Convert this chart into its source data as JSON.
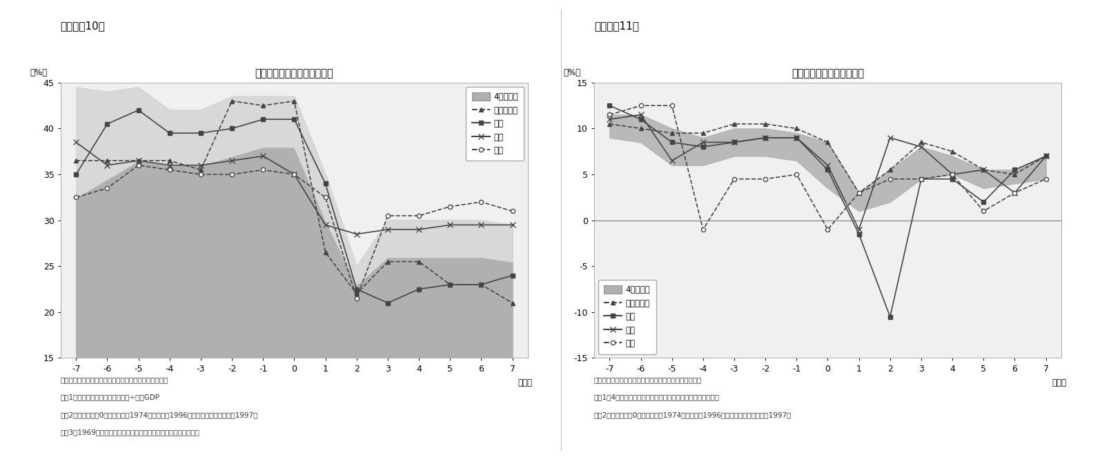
{
  "fig10": {
    "title": "アジア各国の投資比率の屈折",
    "ylabel": "（%）",
    "xlabel": "（年）",
    "xlim": [
      -7.5,
      7.5
    ],
    "ylim": [
      15,
      45
    ],
    "yticks": [
      15,
      20,
      25,
      30,
      35,
      40,
      45
    ],
    "xticks": [
      -7,
      -6,
      -5,
      -4,
      -3,
      -2,
      -1,
      0,
      1,
      2,
      3,
      4,
      5,
      6,
      7
    ],
    "x": [
      -7,
      -6,
      -5,
      -4,
      -3,
      -2,
      -1,
      0,
      1,
      2,
      3,
      4,
      5,
      6,
      7
    ],
    "malaysia": [
      36.5,
      36.5,
      36.5,
      36.5,
      35.5,
      43.0,
      42.5,
      43.0,
      26.5,
      22.0,
      25.5,
      25.5,
      23.0,
      23.0,
      21.0
    ],
    "thailand": [
      35.0,
      40.5,
      42.0,
      39.5,
      39.5,
      40.0,
      41.0,
      41.0,
      34.0,
      22.5,
      21.0,
      22.5,
      23.0,
      23.0,
      24.0
    ],
    "korea": [
      38.5,
      36.0,
      36.5,
      36.0,
      36.0,
      36.5,
      37.0,
      35.0,
      29.5,
      28.5,
      29.0,
      29.0,
      29.5,
      29.5,
      29.5
    ],
    "japan": [
      32.5,
      33.5,
      36.0,
      35.5,
      35.0,
      35.0,
      35.5,
      35.0,
      32.5,
      21.5,
      30.5,
      30.5,
      31.5,
      32.0,
      31.0
    ],
    "avg_lower": [
      32.5,
      34.5,
      36.5,
      36.0,
      36.0,
      37.0,
      38.0,
      38.0,
      30.0,
      23.0,
      26.0,
      26.0,
      26.0,
      26.0,
      25.5
    ],
    "avg_upper": [
      44.5,
      44.0,
      44.5,
      42.0,
      42.0,
      43.5,
      43.5,
      43.5,
      35.0,
      25.0,
      30.0,
      30.0,
      30.0,
      30.0,
      29.5
    ],
    "fill_bottom": 15,
    "notes": [
      "（資料）国連のデータを元にニッセイ基礎研究所で作成",
      "（注1）投資比率は総固定資本形成÷名目GDP",
      "（注2）基準年（＝0年）は日本が1974年、タイが1996年、マレーシアと韓国が1997年",
      "（注3）1969年以前の日本の投資比率はニッセイ基礎研究所で推計"
    ],
    "legend": [
      "4ヵ国平均",
      "マレーシア",
      "タイ",
      "韓国",
      "日本"
    ]
  },
  "fig11": {
    "title": "同時期の経済成長率の推移",
    "ylabel": "（%）",
    "xlabel": "（年）",
    "xlim": [
      -7.5,
      7.5
    ],
    "ylim": [
      -15,
      15
    ],
    "yticks": [
      -15,
      -10,
      -5,
      0,
      5,
      10,
      15
    ],
    "xticks": [
      -7,
      -6,
      -5,
      -4,
      -3,
      -2,
      -1,
      0,
      1,
      2,
      3,
      4,
      5,
      6,
      7
    ],
    "x": [
      -7,
      -6,
      -5,
      -4,
      -3,
      -2,
      -1,
      0,
      1,
      2,
      3,
      4,
      5,
      6,
      7
    ],
    "malaysia": [
      10.5,
      10.0,
      9.5,
      9.5,
      10.5,
      10.5,
      10.0,
      8.5,
      3.0,
      5.5,
      8.5,
      7.5,
      5.5,
      5.0,
      7.0
    ],
    "thailand": [
      12.5,
      11.0,
      8.5,
      8.0,
      8.5,
      9.0,
      9.0,
      5.5,
      -1.5,
      -10.5,
      4.5,
      4.5,
      2.0,
      5.5,
      7.0
    ],
    "korea": [
      11.0,
      11.5,
      6.5,
      8.5,
      8.5,
      9.0,
      9.0,
      6.0,
      -1.0,
      9.0,
      8.0,
      5.0,
      5.5,
      3.0,
      7.0
    ],
    "japan": [
      11.5,
      12.5,
      12.5,
      -1.0,
      4.5,
      4.5,
      5.0,
      -1.0,
      3.0,
      4.5,
      4.5,
      5.0,
      1.0,
      3.0,
      4.5
    ],
    "avg_lower": [
      9.0,
      8.5,
      6.0,
      6.0,
      7.0,
      7.0,
      6.5,
      3.5,
      1.0,
      2.0,
      4.5,
      5.0,
      3.5,
      4.0,
      4.5
    ],
    "avg_upper": [
      11.5,
      11.5,
      10.0,
      9.0,
      10.0,
      10.0,
      9.5,
      8.5,
      3.0,
      5.5,
      8.0,
      7.0,
      5.5,
      5.5,
      7.0
    ],
    "notes": [
      "（資料）国連のデータを元にニッセイ基礎研究所で作成",
      "（注1）4ヵ国平均は日本、タイ、マレーシア、韓国の単純平均",
      "（注2）基準年（＝0年）は日本が1974年、タイが1996年、マレーシアと韓国が1997年"
    ],
    "legend": [
      "4ヵ国平均",
      "マレーシア",
      "タイ",
      "韓国",
      "日本"
    ]
  },
  "header10": "（図表－10）",
  "header11": "（図表－11）",
  "fill_color_dark": "#b0b0b0",
  "fill_color_light": "#d8d8d8",
  "line_color": "#444444"
}
